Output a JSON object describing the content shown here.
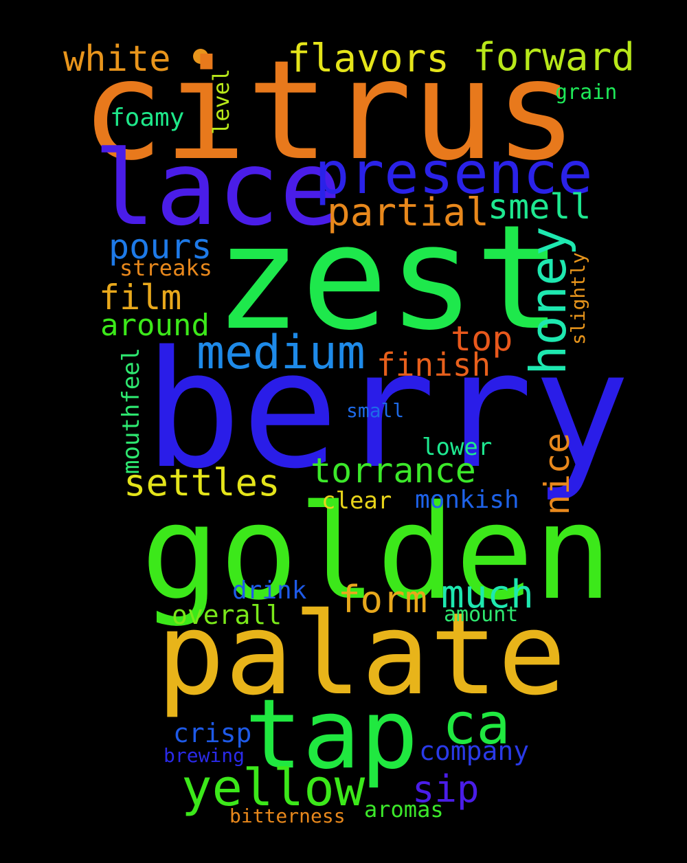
{
  "words": [
    {
      "text": "citrus",
      "color": "#e8791c"
    },
    {
      "text": "zest",
      "color": "#1ee84c"
    },
    {
      "text": "berry",
      "color": "#2a1de8"
    },
    {
      "text": "golden",
      "color": "#3ce81a"
    },
    {
      "text": "palate",
      "color": "#e8b41a"
    },
    {
      "text": "tap",
      "color": "#20e840"
    },
    {
      "text": "lace",
      "color": "#4a1de8"
    },
    {
      "text": "presence",
      "color": "#2a22e8"
    },
    {
      "text": "white",
      "color": "#e8951c"
    },
    {
      "text": "flavors",
      "color": "#e4e41a"
    },
    {
      "text": "forward",
      "color": "#b8e81a"
    },
    {
      "text": "grain",
      "color": "#1ee858"
    },
    {
      "text": "foamy",
      "color": "#1ee88a"
    },
    {
      "text": "level",
      "color": "#b8e81a"
    },
    {
      "text": "partial",
      "color": "#e8881c"
    },
    {
      "text": "smell",
      "color": "#1ee890"
    },
    {
      "text": "pours",
      "color": "#1e7ae8"
    },
    {
      "text": "honey",
      "color": "#1ee8b0"
    },
    {
      "text": "streaks",
      "color": "#e8881c"
    },
    {
      "text": "slightly",
      "color": "#e8951c"
    },
    {
      "text": "film",
      "color": "#e8a81c"
    },
    {
      "text": "around",
      "color": "#3ce81a"
    },
    {
      "text": "top",
      "color": "#e8581c"
    },
    {
      "text": "medium",
      "color": "#1e8ae8"
    },
    {
      "text": "finish",
      "color": "#e8601c"
    },
    {
      "text": "mouthfeel",
      "color": "#2ee870"
    },
    {
      "text": "small",
      "color": "#1e6ae8"
    },
    {
      "text": "lower",
      "color": "#1ee890"
    },
    {
      "text": "nice",
      "color": "#e8881c"
    },
    {
      "text": "settles",
      "color": "#e4e41a"
    },
    {
      "text": "torrance",
      "color": "#3ce82a"
    },
    {
      "text": "clear",
      "color": "#e8d41a"
    },
    {
      "text": "monkish",
      "color": "#1e62e8"
    },
    {
      "text": "drink",
      "color": "#1e5ae8"
    },
    {
      "text": "form",
      "color": "#e8a81c"
    },
    {
      "text": "much",
      "color": "#1ee8b0"
    },
    {
      "text": "overall",
      "color": "#7ae81a"
    },
    {
      "text": "amount",
      "color": "#2ee870"
    },
    {
      "text": "ca",
      "color": "#20e840"
    },
    {
      "text": "crisp",
      "color": "#1e5ae8"
    },
    {
      "text": "company",
      "color": "#2a3ae8"
    },
    {
      "text": "brewing",
      "color": "#2a2ae8"
    },
    {
      "text": "yellow",
      "color": "#3ce81a"
    },
    {
      "text": "sip",
      "color": "#4a1de8"
    },
    {
      "text": "aromas",
      "color": "#3ce82a"
    },
    {
      "text": "bitterness",
      "color": "#e8881c"
    }
  ],
  "dot_color": "#e8951c"
}
